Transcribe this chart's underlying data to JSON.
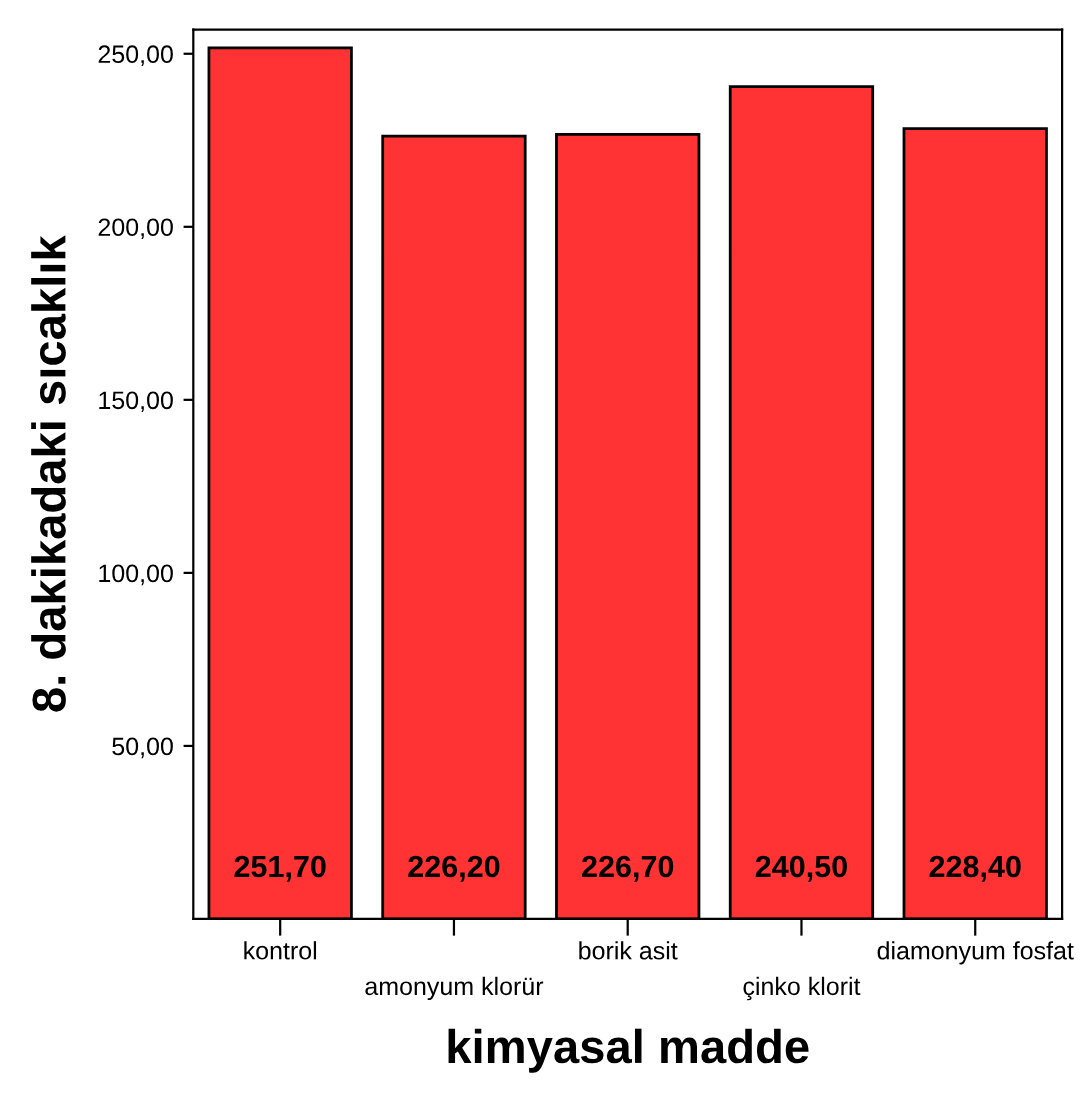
{
  "chart_data": {
    "type": "bar",
    "xlabel": "kimyasal madde",
    "ylabel": "8. dakikadaki sıcaklık",
    "categories": [
      "kontrol",
      "amonyum klorür",
      "borik asit",
      "çinko klorit",
      "diamonyum fosfat"
    ],
    "values": [
      251.7,
      226.2,
      226.7,
      240.5,
      228.4
    ],
    "value_labels": [
      "251,70",
      "226,20",
      "226,70",
      "240,50",
      "228,40"
    ],
    "color": "#ff3333",
    "ylim": [
      0,
      257
    ],
    "yticks": [
      {
        "value": 50,
        "label": "50,00"
      },
      {
        "value": 100,
        "label": "100,00"
      },
      {
        "value": 150,
        "label": "150,00"
      },
      {
        "value": 200,
        "label": "200,00"
      },
      {
        "value": 250,
        "label": "250,00"
      }
    ],
    "grid": false,
    "legend": false
  }
}
